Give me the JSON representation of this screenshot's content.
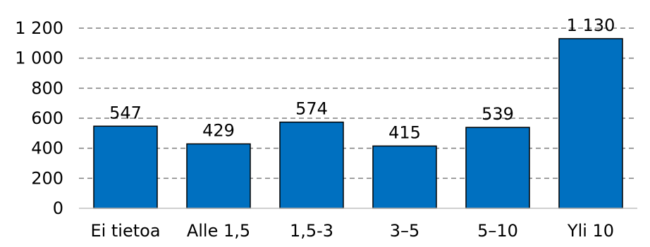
{
  "chart_data": {
    "type": "bar",
    "categories": [
      "Ei tietoa",
      "Alle 1,5",
      "1,5-3",
      "3–5",
      "5–10",
      "Yli 10"
    ],
    "values": [
      547,
      429,
      574,
      415,
      539,
      1130
    ],
    "data_labels": [
      "547",
      "429",
      "574",
      "415",
      "539",
      "1 130"
    ],
    "ylim": [
      0,
      1200
    ],
    "y_ticks": [
      0,
      200,
      400,
      600,
      800,
      1000,
      1200
    ],
    "y_tick_labels": [
      "0",
      "200",
      "400",
      "600",
      "800",
      "1 000",
      "1 200"
    ],
    "grid": true,
    "bar_color": "#0070c0",
    "title": "",
    "xlabel": "",
    "ylabel": ""
  }
}
